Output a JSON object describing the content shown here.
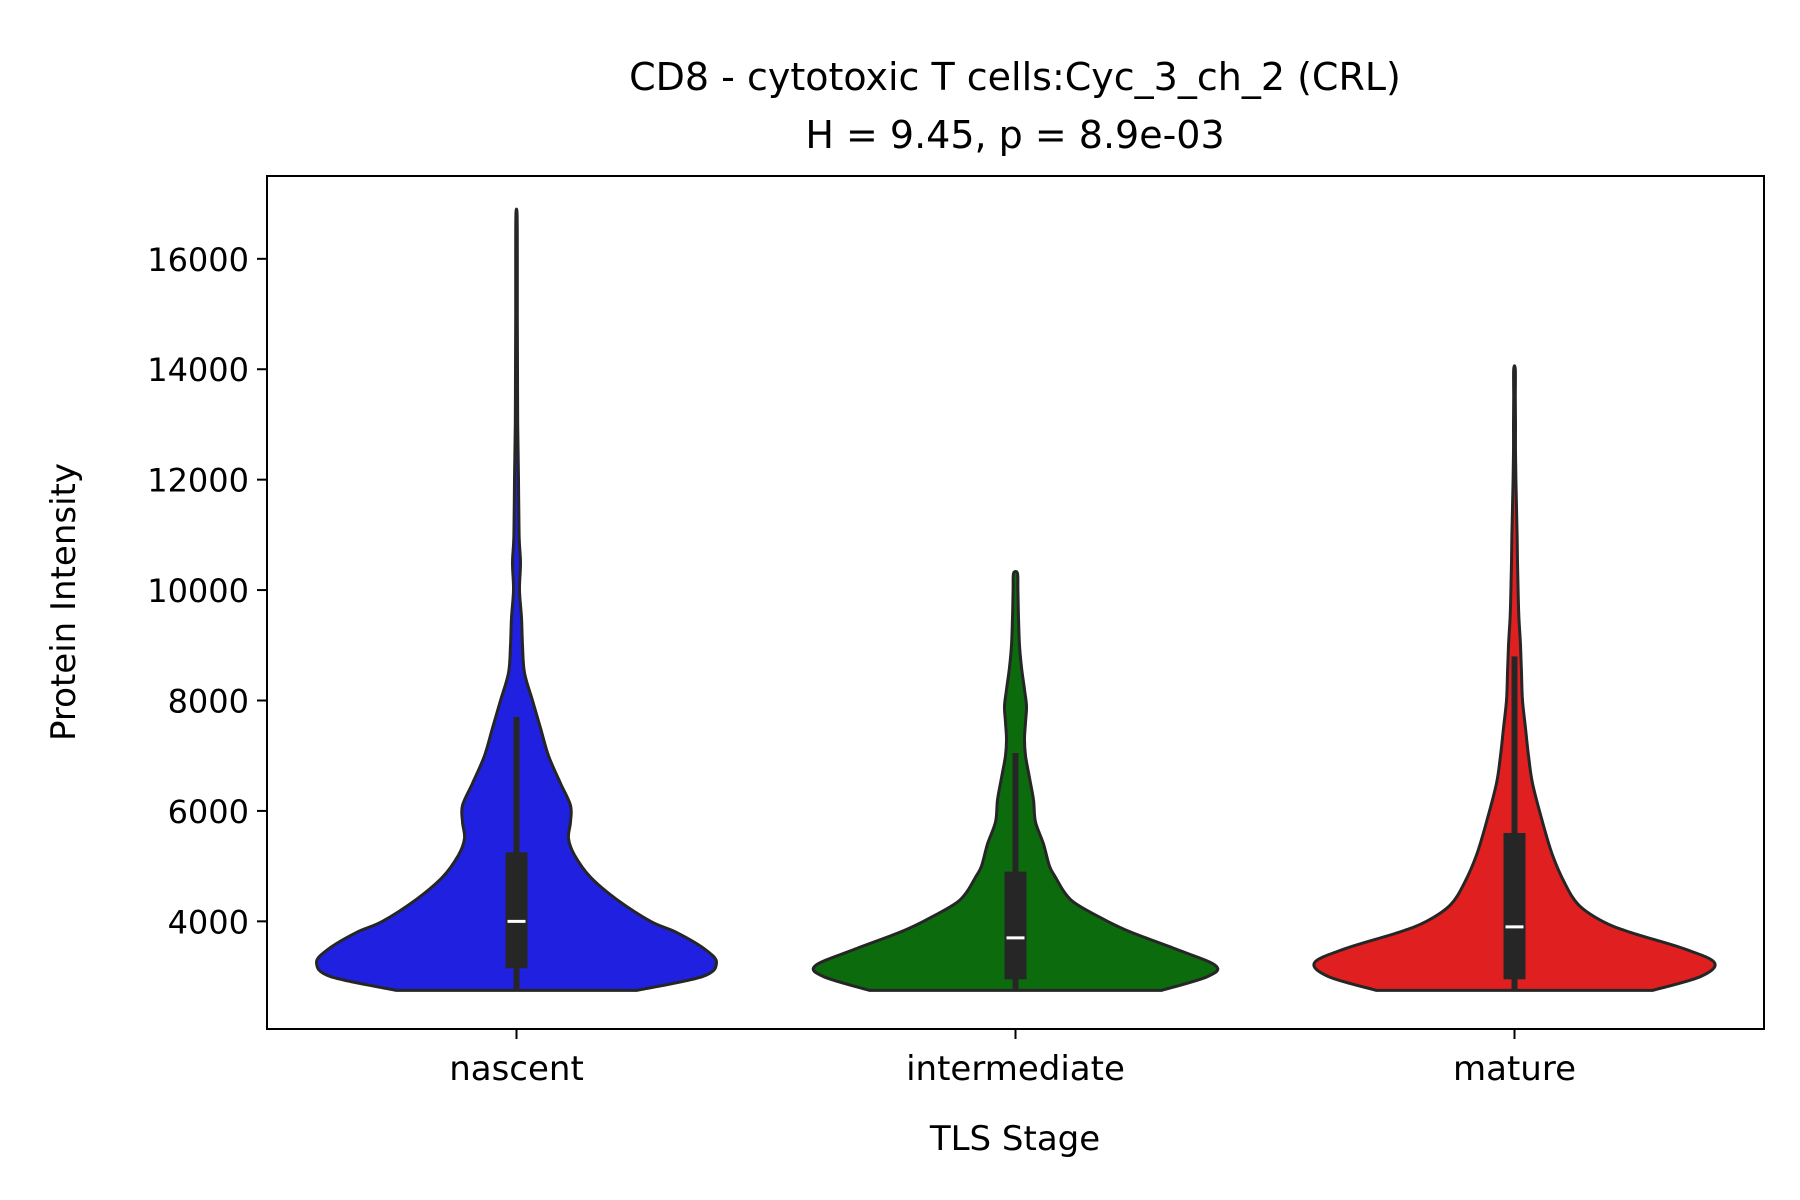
{
  "chart_data": {
    "type": "violin",
    "title": "CD8 - cytotoxic T cells:Cyc_3_ch_2 (CRL)",
    "subtitle": "H = 9.45, p = 8.9e-03",
    "xlabel": "TLS Stage",
    "ylabel": "Protein Intensity",
    "categories": [
      "nascent",
      "intermediate",
      "mature"
    ],
    "ylim": [
      2050,
      17500
    ],
    "yticks": [
      4000,
      6000,
      8000,
      10000,
      12000,
      14000,
      16000
    ],
    "ytick_labels": [
      "4000",
      "6000",
      "8000",
      "10000",
      "12000",
      "14000",
      "16000"
    ],
    "grid": false,
    "legend": "none",
    "series": [
      {
        "category": "nascent",
        "color": "#2020e0",
        "min": 2750,
        "q1": 3150,
        "median": 4000,
        "q3": 5250,
        "whisker_high": 7700,
        "max": 16800,
        "density": [
          [
            2750,
            0.6
          ],
          [
            3000,
            0.93
          ],
          [
            3250,
            1.0
          ],
          [
            3500,
            0.94
          ],
          [
            3800,
            0.8
          ],
          [
            4000,
            0.67
          ],
          [
            4400,
            0.5
          ],
          [
            4800,
            0.37
          ],
          [
            5200,
            0.29
          ],
          [
            5500,
            0.26
          ],
          [
            5800,
            0.27
          ],
          [
            6100,
            0.27
          ],
          [
            6500,
            0.22
          ],
          [
            7000,
            0.16
          ],
          [
            7500,
            0.12
          ],
          [
            8000,
            0.08
          ],
          [
            8500,
            0.04
          ],
          [
            9000,
            0.03
          ],
          [
            9500,
            0.025
          ],
          [
            10000,
            0.015
          ],
          [
            10500,
            0.02
          ],
          [
            11000,
            0.013
          ],
          [
            12000,
            0.01
          ],
          [
            13000,
            0.006
          ],
          [
            14000,
            0.005
          ],
          [
            15000,
            0.004
          ],
          [
            16000,
            0.004
          ],
          [
            16800,
            0.003
          ]
        ]
      },
      {
        "category": "intermediate",
        "color": "#0c6b0c",
        "min": 2750,
        "q1": 2950,
        "median": 3700,
        "q3": 4900,
        "whisker_high": 7050,
        "max": 10300,
        "density": [
          [
            2750,
            0.73
          ],
          [
            3000,
            0.96
          ],
          [
            3200,
            1.0
          ],
          [
            3500,
            0.8
          ],
          [
            3800,
            0.58
          ],
          [
            4000,
            0.46
          ],
          [
            4300,
            0.31
          ],
          [
            4500,
            0.25
          ],
          [
            4800,
            0.2
          ],
          [
            5000,
            0.17
          ],
          [
            5400,
            0.14
          ],
          [
            5800,
            0.1
          ],
          [
            6200,
            0.09
          ],
          [
            6600,
            0.07
          ],
          [
            7000,
            0.05
          ],
          [
            7300,
            0.045
          ],
          [
            7600,
            0.05
          ],
          [
            7900,
            0.055
          ],
          [
            8200,
            0.045
          ],
          [
            8600,
            0.03
          ],
          [
            9000,
            0.02
          ],
          [
            9500,
            0.015
          ],
          [
            10000,
            0.012
          ],
          [
            10300,
            0.01
          ]
        ]
      },
      {
        "category": "mature",
        "color": "#e02020",
        "min": 2750,
        "q1": 2950,
        "median": 3900,
        "q3": 5600,
        "whisker_high": 8800,
        "max": 14000,
        "density": [
          [
            2750,
            0.69
          ],
          [
            3000,
            0.93
          ],
          [
            3250,
            1.0
          ],
          [
            3500,
            0.85
          ],
          [
            3800,
            0.58
          ],
          [
            4000,
            0.44
          ],
          [
            4300,
            0.32
          ],
          [
            4700,
            0.25
          ],
          [
            5200,
            0.19
          ],
          [
            5800,
            0.14
          ],
          [
            6500,
            0.09
          ],
          [
            7000,
            0.07
          ],
          [
            7500,
            0.055
          ],
          [
            8000,
            0.04
          ],
          [
            8500,
            0.035
          ],
          [
            9000,
            0.03
          ],
          [
            9500,
            0.022
          ],
          [
            10000,
            0.018
          ],
          [
            10500,
            0.015
          ],
          [
            11000,
            0.013
          ],
          [
            11500,
            0.01
          ],
          [
            12000,
            0.007
          ],
          [
            12500,
            0.005
          ],
          [
            13000,
            0.005
          ],
          [
            13500,
            0.004
          ],
          [
            14000,
            0.004
          ]
        ]
      }
    ]
  }
}
